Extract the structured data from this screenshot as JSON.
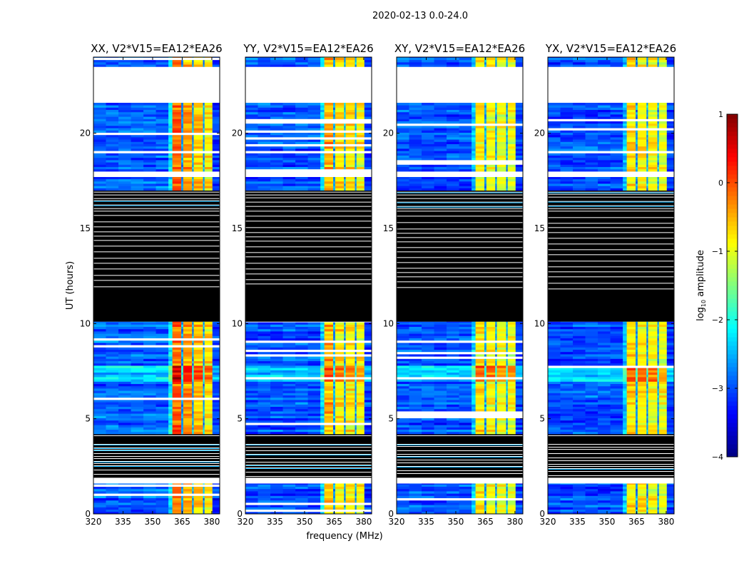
{
  "chart_data": {
    "type": "heatmap",
    "title": "2020-02-13 0.0-24.0",
    "xlabel": "frequency (MHz)",
    "ylabel": "UT (hours)",
    "xlim": [
      320,
      384
    ],
    "ylim": [
      0,
      24
    ],
    "xticks": [
      "320",
      "335",
      "350",
      "365",
      "380"
    ],
    "xtick_values": [
      320,
      335,
      350,
      365,
      380
    ],
    "yticks": [
      "0",
      "5",
      "10",
      "15",
      "20"
    ],
    "ytick_values": [
      0,
      5,
      10,
      15,
      20
    ],
    "colorbar": {
      "label_main": "log",
      "label_sub": "10",
      "label_rest": " amplitude",
      "range": [
        -4,
        1
      ],
      "ticks": [
        "1",
        "0",
        "−1",
        "−2",
        "−3",
        "−4"
      ],
      "tick_values": [
        1,
        0,
        -1,
        -2,
        -3,
        -4
      ],
      "colormap": "jet"
    },
    "time_segments": [
      {
        "start": 0.0,
        "end": 1.6,
        "kind": "data"
      },
      {
        "start": 1.6,
        "end": 1.9,
        "kind": "blank"
      },
      {
        "start": 1.9,
        "end": 3.75,
        "kind": "striped"
      },
      {
        "start": 3.75,
        "end": 4.2,
        "kind": "flagged"
      },
      {
        "start": 4.2,
        "end": 10.1,
        "kind": "data"
      },
      {
        "start": 10.1,
        "end": 16.0,
        "kind": "flagged"
      },
      {
        "start": 16.0,
        "end": 17.0,
        "kind": "striped"
      },
      {
        "start": 17.0,
        "end": 17.7,
        "kind": "data"
      },
      {
        "start": 17.7,
        "end": 18.0,
        "kind": "blank"
      },
      {
        "start": 18.0,
        "end": 21.6,
        "kind": "data"
      },
      {
        "start": 21.6,
        "end": 23.5,
        "kind": "blank"
      },
      {
        "start": 23.5,
        "end": 24.0,
        "kind": "data"
      }
    ],
    "panels": [
      {
        "title": "XX, V2*V15=EA12*EA26",
        "freq_segments": [
          {
            "start": 320,
            "end": 358,
            "level": -2.9
          },
          {
            "start": 358,
            "end": 360,
            "level": -2.2
          },
          {
            "start": 360,
            "end": 364.5,
            "level": -0.1
          },
          {
            "start": 364.5,
            "end": 365.5,
            "level": -2.6
          },
          {
            "start": 365.5,
            "end": 370,
            "level": -0.4
          },
          {
            "start": 370,
            "end": 370.8,
            "level": -2.6
          },
          {
            "start": 370.8,
            "end": 375.5,
            "level": -0.6
          },
          {
            "start": 375.5,
            "end": 376.3,
            "level": -2.6
          },
          {
            "start": 376.3,
            "end": 380.3,
            "level": -0.8
          },
          {
            "start": 380.3,
            "end": 384,
            "level": -3.1
          }
        ]
      },
      {
        "title": "YY, V2*V15=EA12*EA26",
        "freq_segments": [
          {
            "start": 320,
            "end": 358,
            "level": -3.0
          },
          {
            "start": 358,
            "end": 360,
            "level": -2.3
          },
          {
            "start": 360,
            "end": 364.5,
            "level": -0.5
          },
          {
            "start": 364.5,
            "end": 365.5,
            "level": -2.6
          },
          {
            "start": 365.5,
            "end": 370,
            "level": -0.8
          },
          {
            "start": 370,
            "end": 370.8,
            "level": -2.6
          },
          {
            "start": 370.8,
            "end": 375.5,
            "level": -0.8
          },
          {
            "start": 375.5,
            "end": 376.3,
            "level": -2.6
          },
          {
            "start": 376.3,
            "end": 380.3,
            "level": -0.9
          },
          {
            "start": 380.3,
            "end": 384,
            "level": -3.1
          }
        ]
      },
      {
        "title": "XY, V2*V15=EA12*EA26",
        "freq_segments": [
          {
            "start": 320,
            "end": 358,
            "level": -3.0
          },
          {
            "start": 358,
            "end": 360,
            "level": -2.4
          },
          {
            "start": 360,
            "end": 364.5,
            "level": -0.8
          },
          {
            "start": 364.5,
            "end": 365.5,
            "level": -2.6
          },
          {
            "start": 365.5,
            "end": 370,
            "level": -0.9
          },
          {
            "start": 370,
            "end": 370.8,
            "level": -2.6
          },
          {
            "start": 370.8,
            "end": 375.5,
            "level": -1.0
          },
          {
            "start": 375.5,
            "end": 376.3,
            "level": -2.6
          },
          {
            "start": 376.3,
            "end": 380.3,
            "level": -1.0
          },
          {
            "start": 380.3,
            "end": 384,
            "level": -3.1
          }
        ]
      },
      {
        "title": "YX, V2*V15=EA12*EA26",
        "freq_segments": [
          {
            "start": 320,
            "end": 358,
            "level": -3.0
          },
          {
            "start": 358,
            "end": 360,
            "level": -2.4
          },
          {
            "start": 360,
            "end": 364.5,
            "level": -0.7
          },
          {
            "start": 364.5,
            "end": 365.5,
            "level": -2.6
          },
          {
            "start": 365.5,
            "end": 370,
            "level": -0.8
          },
          {
            "start": 370,
            "end": 370.8,
            "level": -2.6
          },
          {
            "start": 370.8,
            "end": 375.5,
            "level": -0.9
          },
          {
            "start": 375.5,
            "end": 376.3,
            "level": -2.6
          },
          {
            "start": 376.3,
            "end": 380.3,
            "level": -1.0
          },
          {
            "start": 380.3,
            "end": 384,
            "level": -3.1
          }
        ]
      }
    ]
  }
}
